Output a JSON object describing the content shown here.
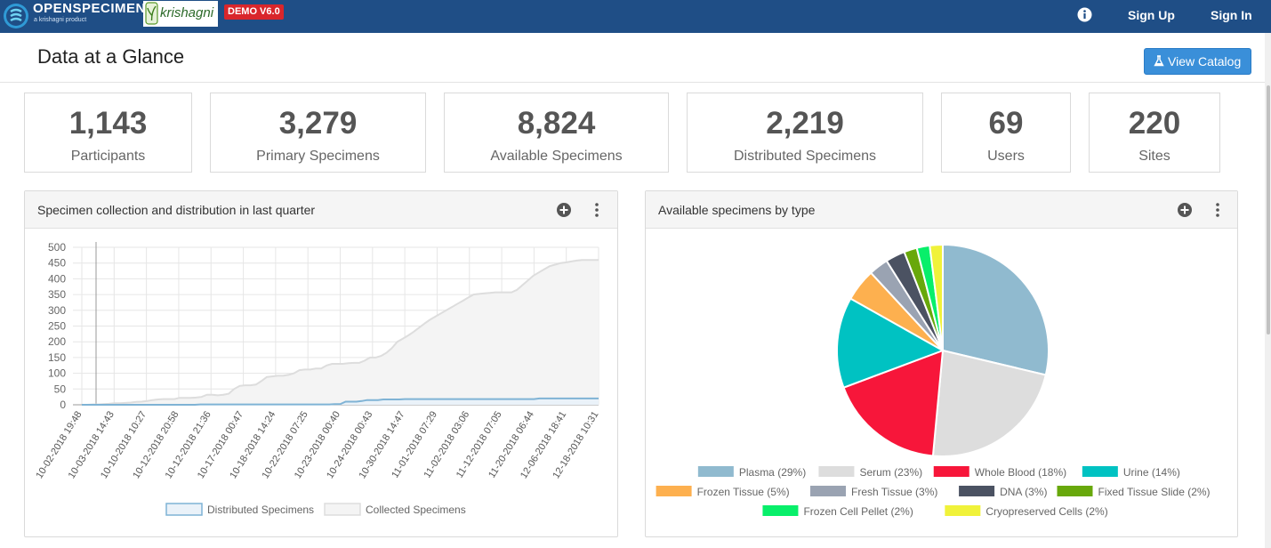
{
  "brand": {
    "name": "OPENSPECIMEN",
    "tagline": "a krishagni product",
    "partner": "krishagni",
    "demo_badge": "DEMO V6.0"
  },
  "nav": {
    "sign_up": "Sign Up",
    "sign_in": "Sign In"
  },
  "header": {
    "title": "Data at a Glance",
    "view_catalog": "View Catalog"
  },
  "stats": [
    {
      "value": "1,143",
      "label": "Participants"
    },
    {
      "value": "3,279",
      "label": "Primary Specimens"
    },
    {
      "value": "8,824",
      "label": "Available Specimens"
    },
    {
      "value": "2,219",
      "label": "Distributed Specimens"
    },
    {
      "value": "69",
      "label": "Users"
    },
    {
      "value": "220",
      "label": "Sites"
    }
  ],
  "colors": {
    "nav": "#1f4e86",
    "accent": "#3a8fd9",
    "badge": "#d9262b"
  },
  "icons": {
    "add": "plus-circle-icon",
    "menu": "vertical-dots-icon",
    "info": "info-icon",
    "catalog": "flask-icon"
  },
  "panels": {
    "line": {
      "title": "Specimen collection and distribution in last quarter"
    },
    "pie": {
      "title": "Available specimens by type"
    }
  },
  "chart_data": [
    {
      "type": "area",
      "title": "Specimen collection and distribution in last quarter",
      "ylim": [
        0,
        500
      ],
      "yticks": [
        0,
        50,
        100,
        150,
        200,
        250,
        300,
        350,
        400,
        450,
        500
      ],
      "x_tick_labels": [
        "10-02-2018 19:48",
        "10-03-2018 14:43",
        "10-10-2018 10:27",
        "10-12-2018 20:58",
        "10-12-2018 21:36",
        "10-17-2018 00:47",
        "10-18-2018 14:24",
        "10-22-2018 07:25",
        "10-23-2018 00:40",
        "10-24-2018 00:43",
        "10-30-2018 14:47",
        "11-01-2018 07:29",
        "11-02-2018 03:06",
        "11-12-2018 07:05",
        "11-20-2018 06:44",
        "12-06-2018 18:41",
        "12-18-2018 10:31"
      ],
      "grid": true,
      "legend_position": "bottom",
      "series": [
        {
          "name": "Distributed Specimens",
          "color": "#7fb3d5",
          "fill": "#eaf2f9",
          "values": [
            0,
            0,
            0,
            0,
            0,
            0,
            0,
            0,
            0,
            0,
            0,
            0,
            0,
            0,
            0,
            0,
            0,
            0,
            0,
            0,
            0,
            0,
            1,
            1,
            1,
            1,
            1,
            1,
            1,
            1,
            1,
            1,
            1,
            1,
            1,
            1,
            1,
            1,
            1,
            1,
            1,
            1,
            1,
            1,
            1,
            1,
            1,
            2,
            2,
            10,
            10,
            10,
            12,
            15,
            15,
            15,
            17,
            17,
            17,
            17,
            18,
            18,
            18,
            18,
            18,
            18,
            18,
            18,
            18,
            18,
            18,
            18,
            18,
            18,
            18,
            18,
            18,
            18,
            18,
            18,
            18,
            18,
            18,
            18,
            18,
            20,
            20,
            20,
            20,
            20,
            20,
            20,
            20,
            20,
            20,
            20,
            20
          ]
        },
        {
          "name": "Collected Specimens",
          "color": "#dddddd",
          "fill": "#f4f4f4",
          "values": [
            0,
            0,
            1,
            1,
            2,
            3,
            5,
            5,
            6,
            7,
            9,
            10,
            12,
            15,
            17,
            18,
            18,
            18,
            22,
            22,
            22,
            23,
            25,
            32,
            32,
            30,
            32,
            35,
            50,
            60,
            62,
            62,
            64,
            75,
            88,
            90,
            92,
            92,
            95,
            100,
            110,
            112,
            112,
            115,
            115,
            125,
            130,
            130,
            130,
            132,
            133,
            133,
            140,
            150,
            150,
            155,
            165,
            180,
            200,
            210,
            220,
            232,
            245,
            258,
            270,
            280,
            290,
            300,
            310,
            320,
            330,
            340,
            350,
            352,
            354,
            355,
            357,
            357,
            357,
            357,
            365,
            380,
            395,
            410,
            420,
            430,
            440,
            445,
            450,
            452,
            455,
            458,
            460,
            460,
            460,
            460
          ]
        }
      ]
    },
    {
      "type": "pie",
      "title": "Available specimens by type",
      "legend_position": "bottom",
      "slices": [
        {
          "label": "Plasma (29%)",
          "value": 29,
          "color": "#90bacf"
        },
        {
          "label": "Serum (23%)",
          "value": 23,
          "color": "#dddddd"
        },
        {
          "label": "Whole Blood (18%)",
          "value": 18,
          "color": "#f7163a"
        },
        {
          "label": "Urine (14%)",
          "value": 14,
          "color": "#00c2c2"
        },
        {
          "label": "Frozen Tissue (5%)",
          "value": 5,
          "color": "#fdb04f"
        },
        {
          "label": "Fresh Tissue (3%)",
          "value": 3,
          "color": "#9aa3b2"
        },
        {
          "label": "DNA (3%)",
          "value": 3,
          "color": "#4b5262"
        },
        {
          "label": "Fixed Tissue Slide (2%)",
          "value": 2,
          "color": "#68a80b"
        },
        {
          "label": "Frozen Cell Pellet (2%)",
          "value": 2,
          "color": "#08ef6a"
        },
        {
          "label": "Cryopreserved Cells (2%)",
          "value": 2,
          "color": "#f0f23a"
        }
      ]
    }
  ]
}
